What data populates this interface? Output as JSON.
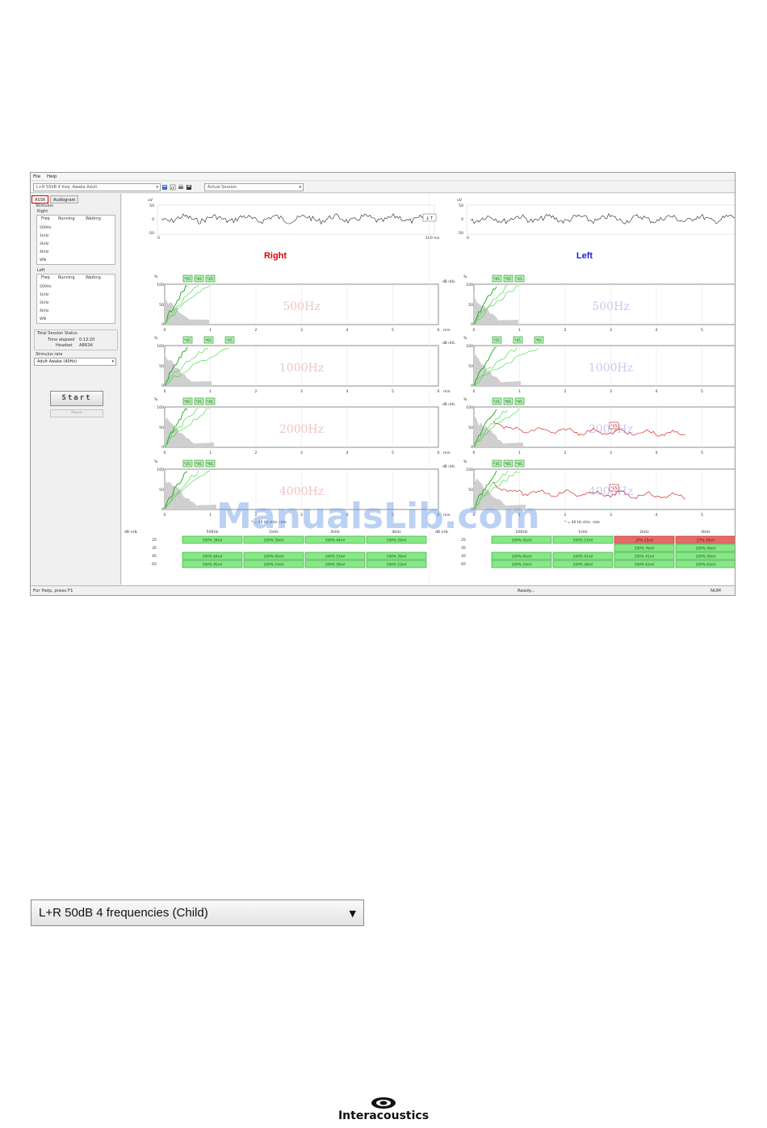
{
  "menu": [
    "File",
    "Help"
  ],
  "toolbar": {
    "protocol": "L+R 55dB 4 freq. Awake Adult",
    "session": "Actual Session"
  },
  "tabs": [
    "ASSR",
    "Audiogram"
  ],
  "left_panel": {
    "stimulus_label": "Stimulus",
    "right_label": "Right",
    "left_label": "Left",
    "col_freq": "Freq",
    "col_running": "Running",
    "col_waiting": "Waiting",
    "right_freqs": [
      "500Hz",
      "1kHz",
      "2kHz",
      "4kHz",
      "WN"
    ],
    "left_freqs": [
      "500Hz",
      "1kHz",
      "2kHz",
      "4kHz",
      "WN"
    ],
    "status_title": "Total Session Status",
    "time_elapsed_label": "Time elapsed",
    "time_elapsed": "0:13:20",
    "headset_label": "Headset",
    "headset": "ABR3A",
    "stim_rate_label": "Stimulus rate",
    "stim_rate": "Adult Awake (40Hz)",
    "start_label": "Start",
    "pause_label": "Pause"
  },
  "eeg": {
    "unit": "uV",
    "y_ticks": [
      "50",
      "0",
      "-50"
    ],
    "x_start": "0",
    "x_end": "100 ms"
  },
  "sides": [
    {
      "title": "Right",
      "color": "#e00000"
    },
    {
      "title": "Left",
      "color": "#2020d0"
    }
  ],
  "graphs": {
    "freqs": [
      "500Hz",
      "1000Hz",
      "2000Hz",
      "4000Hz"
    ],
    "y_unit": "%",
    "y_ticks": [
      "100",
      "50",
      "0"
    ],
    "x_ticks": [
      "0",
      "1",
      "2",
      "3",
      "4",
      "5",
      "6"
    ],
    "x_unit": "min",
    "level_unit": "dB nHL",
    "right_tags": [
      [
        "*55",
        "*45",
        "*25"
      ],
      [
        "*45",
        "*65",
        "*25"
      ],
      [
        "*65",
        "*25",
        "*45"
      ],
      [
        "*25",
        "*45",
        "*65"
      ]
    ],
    "left_tags": [
      [
        "*45",
        "*55",
        "*25"
      ],
      [
        "*25",
        "*45",
        "*65"
      ],
      [
        "*25",
        "*65",
        "*45"
      ],
      [
        "*35",
        "*65",
        "*45"
      ]
    ],
    "left_red_tags": [
      "",
      "",
      "*25",
      "*25"
    ],
    "rate_note_right": "* = 40 Hz stim. rate",
    "rate_note_left": "* = 40 Hz stim. rate"
  },
  "table": {
    "corner": "dB nHL",
    "headers": [
      "500Hz",
      "1kHz",
      "2kHz",
      "4kHz"
    ],
    "levels": [
      "25",
      "35",
      "45",
      "65"
    ],
    "right": [
      [
        "100%  34nV",
        "100%  39nV",
        "100%  44nV",
        "100%  29nV"
      ],
      [
        "",
        "",
        "",
        ""
      ],
      [
        "100%  84nV",
        "100%  65nV",
        "100%  53nV",
        "100%  39nV"
      ],
      [
        "100%  95nV",
        "100%  53nV",
        "100%  58nV",
        "100%  53nV"
      ]
    ],
    "left": [
      [
        "100%  42nV",
        "100%  53nV",
        "37%  25nV",
        "27%  29nV"
      ],
      [
        "",
        "",
        "100%  76nV",
        "100%  40nV"
      ],
      [
        "100%  65nV",
        "100%  41nV",
        "100%  41nV",
        "100%  56nV"
      ],
      [
        "100%  53nV",
        "100%  36nV",
        "100%  63nV",
        "100%  63nV"
      ]
    ]
  },
  "status_bar": {
    "help": "For Help, press F1",
    "state": "Ready...",
    "num": "NUM"
  },
  "watermark": "ManualsLib.com",
  "protocol_dropdown": "L+R 50dB 4 frequencies (Child)",
  "brand": "Interacoustics",
  "colors": {
    "response_green": "#22cc22",
    "noise_red": "#d23030",
    "table_green": "#86e986",
    "table_red": "#e46a6a"
  }
}
